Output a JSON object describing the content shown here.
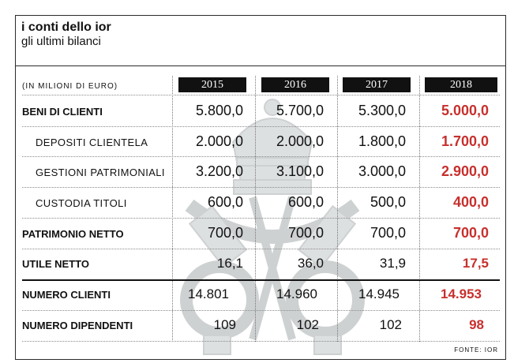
{
  "title": "i conti dello ior",
  "subtitle": "gli ultimi bilanci",
  "source": "FONTE: IOR",
  "chart_data": {
    "type": "table",
    "unit_label": "(IN MILIONI DI EURO)",
    "columns": [
      "2015",
      "2016",
      "2017",
      "2018"
    ],
    "rows": [
      {
        "label": "BENI DI CLIENTI",
        "values": [
          "5.800,0",
          "5.700,0",
          "5.300,0",
          "5.000,0"
        ]
      },
      {
        "label": "DEPOSITI CLIENTELA",
        "values": [
          "2.000,0",
          "2.000,0",
          "1.800,0",
          "1.700,0"
        ]
      },
      {
        "label": "GESTIONI PATRIMONIALI",
        "values": [
          "3.200,0",
          "3.100,0",
          "3.000,0",
          "2.900,0"
        ]
      },
      {
        "label": "CUSTODIA TITOLI",
        "values": [
          "600,0",
          "600,0",
          "500,0",
          "400,0"
        ]
      },
      {
        "label": "PATRIMONIO NETTO",
        "values": [
          "700,0",
          "700,0",
          "700,0",
          "700,0"
        ]
      },
      {
        "label": "UTILE NETTO",
        "values": [
          "16,1",
          "36,0",
          "31,9",
          "17,5"
        ]
      },
      {
        "label": "NUMERO CLIENTI",
        "values": [
          "14.801",
          "14.960",
          "14.945",
          "14.953"
        ]
      },
      {
        "label": "NUMERO DIPENDENTI",
        "values": [
          "109",
          "102",
          "102",
          "98"
        ]
      }
    ],
    "highlight_color": "#c7302d"
  }
}
